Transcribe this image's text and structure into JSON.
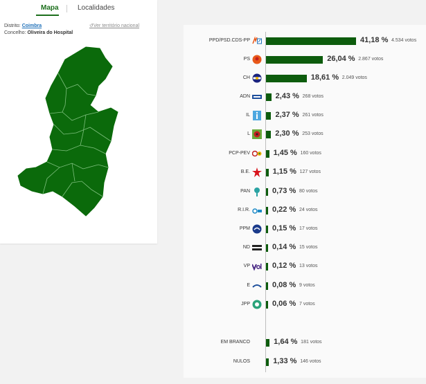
{
  "tabs": {
    "mapa": "Mapa",
    "localidades": "Localidades"
  },
  "location": {
    "distrito_label": "Distrito:",
    "distrito_value": "Coimbra",
    "concelho_label": "Concelho:",
    "concelho_value": "Oliveira do Hospital",
    "ver_link": "Ver território nacional"
  },
  "colors": {
    "bar": "#0d5c0d",
    "map_fill": "#0b6a0b",
    "accent": "#1b6e1b"
  },
  "parties": [
    {
      "name": "PPD/PSD.CDS-PP",
      "pct": 41.18,
      "pct_label": "41,18 %",
      "votes": "4.534 votos",
      "icon": "ppd-psd-cds-logo-icon"
    },
    {
      "name": "PS",
      "pct": 26.04,
      "pct_label": "26,04 %",
      "votes": "2.867 votos",
      "icon": "ps-logo-icon"
    },
    {
      "name": "CH",
      "pct": 18.61,
      "pct_label": "18,61 %",
      "votes": "2.049 votos",
      "icon": "ch-logo-icon"
    },
    {
      "name": "ADN",
      "pct": 2.43,
      "pct_label": "2,43 %",
      "votes": "268 votos",
      "icon": "adn-logo-icon"
    },
    {
      "name": "IL",
      "pct": 2.37,
      "pct_label": "2,37 %",
      "votes": "261 votos",
      "icon": "il-logo-icon"
    },
    {
      "name": "L",
      "pct": 2.3,
      "pct_label": "2,30 %",
      "votes": "253 votos",
      "icon": "livre-logo-icon"
    },
    {
      "name": "PCP-PEV",
      "pct": 1.45,
      "pct_label": "1,45 %",
      "votes": "160 votos",
      "icon": "pcp-pev-logo-icon"
    },
    {
      "name": "B.E.",
      "pct": 1.15,
      "pct_label": "1,15 %",
      "votes": "127 votos",
      "icon": "be-logo-icon"
    },
    {
      "name": "PAN",
      "pct": 0.73,
      "pct_label": "0,73 %",
      "votes": "80 votos",
      "icon": "pan-logo-icon"
    },
    {
      "name": "R.I.R.",
      "pct": 0.22,
      "pct_label": "0,22 %",
      "votes": "24 votos",
      "icon": "rir-logo-icon"
    },
    {
      "name": "PPM",
      "pct": 0.15,
      "pct_label": "0,15 %",
      "votes": "17 votos",
      "icon": "ppm-logo-icon"
    },
    {
      "name": "ND",
      "pct": 0.14,
      "pct_label": "0,14 %",
      "votes": "15 votos",
      "icon": "nd-logo-icon"
    },
    {
      "name": "VP",
      "pct": 0.12,
      "pct_label": "0,12 %",
      "votes": "13 votos",
      "icon": "volt-logo-icon"
    },
    {
      "name": "E",
      "pct": 0.08,
      "pct_label": "0,08 %",
      "votes": "9 votos",
      "icon": "ergue-te-logo-icon"
    },
    {
      "name": "JPP",
      "pct": 0.06,
      "pct_label": "0,06 %",
      "votes": "7 votos",
      "icon": "jpp-logo-icon"
    }
  ],
  "others": [
    {
      "name": "EM BRANCO",
      "pct": 1.64,
      "pct_label": "1,64 %",
      "votes": "181 votos"
    },
    {
      "name": "NULOS",
      "pct": 1.33,
      "pct_label": "1,33 %",
      "votes": "146 votos"
    }
  ]
}
